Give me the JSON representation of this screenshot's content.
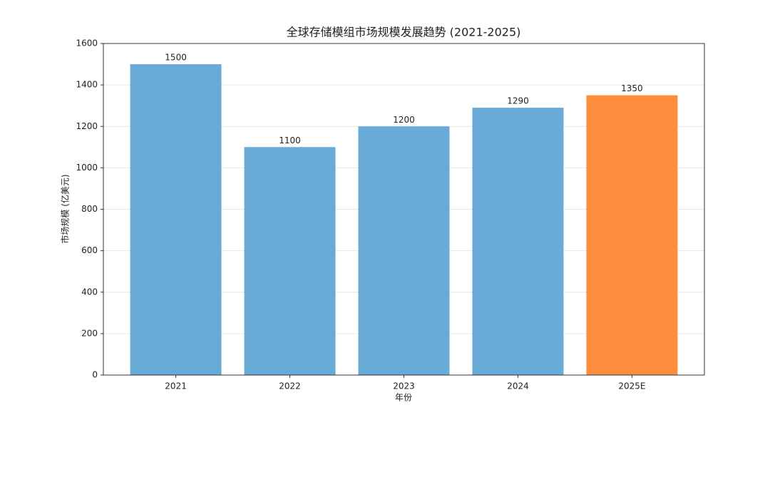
{
  "chart_data": {
    "type": "bar",
    "title": "全球存储模组市场规模发展趋势 (2021-2025)",
    "x_label": "年份",
    "y_label": "市场规模 (亿美元)",
    "categories": [
      "2021",
      "2022",
      "2023",
      "2024",
      "2025E"
    ],
    "values": [
      1500,
      1100,
      1200,
      1290,
      1350
    ],
    "colors": [
      "#6aaad6",
      "#6aaad6",
      "#6aaad6",
      "#6aaad6",
      "#fd8d3c"
    ],
    "ylim": [
      0,
      1600
    ],
    "yticks": [
      0,
      200,
      400,
      600,
      800,
      1000,
      1200,
      1400,
      1600
    ],
    "grid": true
  }
}
